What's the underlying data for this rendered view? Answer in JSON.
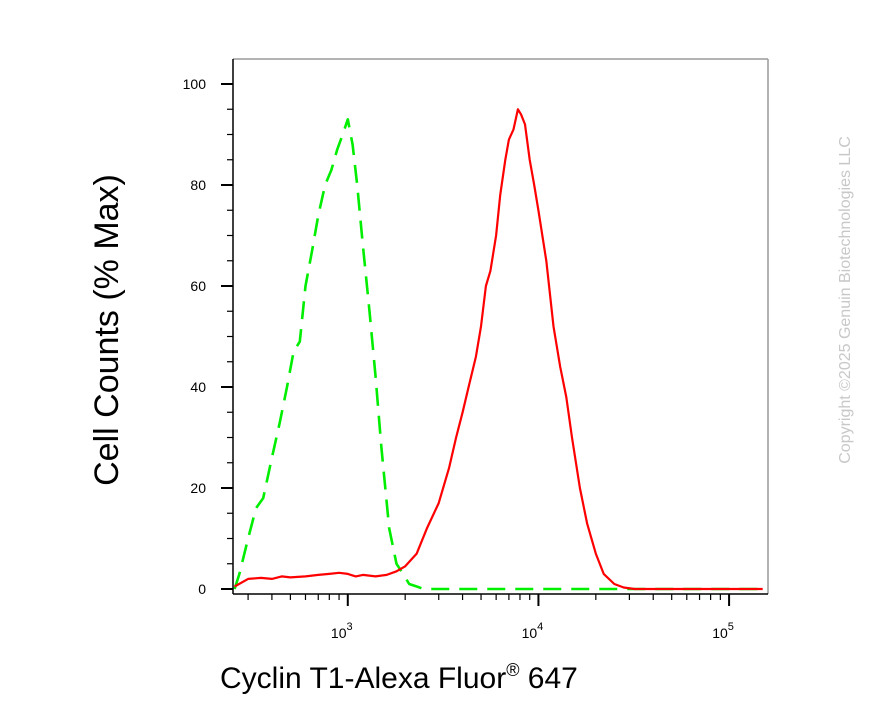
{
  "chart_data": {
    "type": "line",
    "xlabel": "Cyclin T1-Alexa Fluor",
    "xlabel_superscript": "®",
    "xlabel_suffix": " 647",
    "ylabel": "Cell Counts (% Max)",
    "x_scale": "log",
    "xlim": [
      250,
      160000
    ],
    "ylim": [
      0,
      100
    ],
    "y_ticks": [
      0,
      20,
      40,
      60,
      80,
      100
    ],
    "x_ticks": [
      {
        "value": 1000,
        "base": "10",
        "exp": "3"
      },
      {
        "value": 10000,
        "base": "10",
        "exp": "4"
      },
      {
        "value": 100000,
        "base": "10",
        "exp": "5"
      }
    ],
    "series": [
      {
        "color": "#00ee00",
        "style": "dashed",
        "x": [
          255,
          270,
          300,
          330,
          360,
          400,
          440,
          480,
          520,
          560,
          600,
          650,
          700,
          760,
          820,
          880,
          940,
          1000,
          1060,
          1120,
          1200,
          1300,
          1400,
          1500,
          1650,
          1800,
          1950,
          2100,
          2300,
          2500,
          2700,
          3000,
          5000,
          10000,
          50000,
          150000
        ],
        "y": [
          0,
          3,
          10,
          16,
          18,
          26,
          33,
          40,
          47,
          49,
          60,
          67,
          74,
          80,
          83,
          87,
          90,
          93,
          88,
          80,
          68,
          55,
          42,
          28,
          12,
          5,
          3,
          1,
          0.5,
          0,
          0,
          0,
          0,
          0,
          0,
          0
        ]
      },
      {
        "color": "#ff0000",
        "style": "solid",
        "x": [
          255,
          300,
          350,
          400,
          450,
          500,
          600,
          700,
          800,
          900,
          1000,
          1100,
          1200,
          1400,
          1600,
          1800,
          2000,
          2300,
          2600,
          3000,
          3400,
          3700,
          4000,
          4300,
          4700,
          5000,
          5300,
          5600,
          6000,
          6300,
          6700,
          7000,
          7400,
          7800,
          8100,
          8500,
          9000,
          9500,
          10000,
          11000,
          12000,
          13000,
          14000,
          15000,
          16500,
          18000,
          20000,
          22000,
          25000,
          28000,
          32000,
          40000,
          60000,
          100000,
          150000
        ],
        "y": [
          0.5,
          2,
          2.2,
          2,
          2.5,
          2.3,
          2.5,
          2.8,
          3,
          3.2,
          3,
          2.5,
          2.8,
          2.5,
          2.8,
          3.5,
          4.5,
          7,
          12,
          17,
          24,
          30,
          35,
          40,
          46,
          52,
          60,
          63,
          70,
          78,
          85,
          89,
          91,
          95,
          94,
          92,
          85,
          80,
          75,
          65,
          52,
          44,
          38,
          30,
          20,
          13,
          7,
          3,
          1,
          0.3,
          0,
          0,
          0,
          0,
          0
        ]
      }
    ]
  },
  "watermark": {
    "copyright": "Copyright ©2025 Genuin Biotechnologies LLC"
  }
}
